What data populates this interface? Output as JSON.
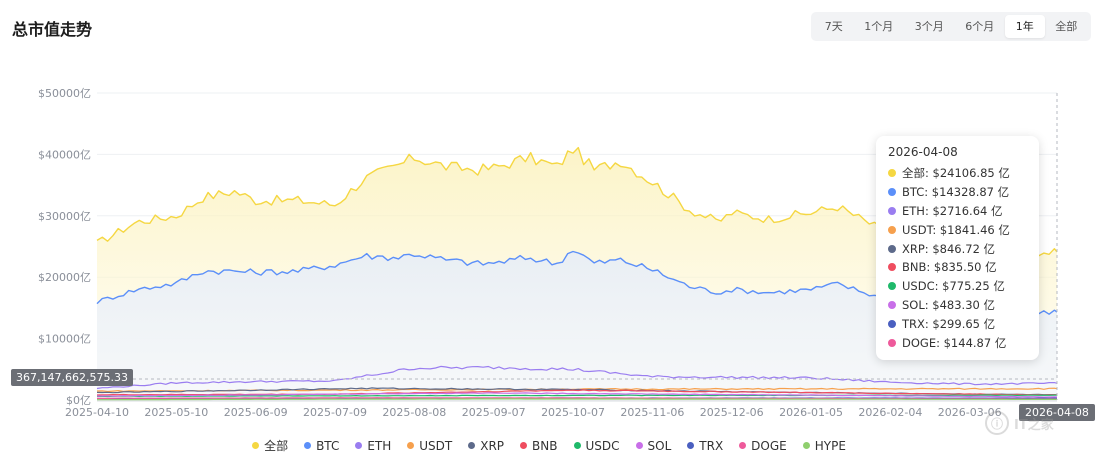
{
  "header": {
    "title": "总市值走势"
  },
  "range_tabs": {
    "items": [
      {
        "label": "7天",
        "active": false
      },
      {
        "label": "1个月",
        "active": false
      },
      {
        "label": "3个月",
        "active": false
      },
      {
        "label": "6个月",
        "active": false
      },
      {
        "label": "1年",
        "active": true
      },
      {
        "label": "全部",
        "active": false
      }
    ]
  },
  "crosshair": {
    "y_value_label": "367,147,662,575.33",
    "x_value_label": "2026-04-08"
  },
  "tooltip": {
    "date": "2026-04-08",
    "rows": [
      {
        "color": "#f5d742",
        "text": "全部: $24106.85 亿"
      },
      {
        "color": "#5b8ff9",
        "text": "BTC: $14328.87 亿"
      },
      {
        "color": "#9a7df0",
        "text": "ETH: $2716.64 亿"
      },
      {
        "color": "#f6a04d",
        "text": "USDT: $1841.46 亿"
      },
      {
        "color": "#5d6a8a",
        "text": "XRP: $846.72 亿"
      },
      {
        "color": "#ef4d5f",
        "text": "BNB: $835.50 亿"
      },
      {
        "color": "#1fb96a",
        "text": "USDC: $775.25 亿"
      },
      {
        "color": "#c86fe8",
        "text": "SOL: $483.30 亿"
      },
      {
        "color": "#4a5fc0",
        "text": "TRX: $299.65 亿"
      },
      {
        "color": "#ee5a9b",
        "text": "DOGE: $144.87 亿"
      }
    ]
  },
  "watermark": {
    "text": "IT之家"
  },
  "chart_data": {
    "type": "area",
    "x_ticks": [
      "2025-04-10",
      "2025-05-10",
      "2025-06-09",
      "2025-07-09",
      "2025-08-08",
      "2025-09-07",
      "2025-10-07",
      "2025-11-06",
      "2025-12-06",
      "2026-01-05",
      "2026-02-04",
      "2026-03-06"
    ],
    "y_ticks": [
      "$0亿",
      "$10000亿",
      "$20000亿",
      "$30000亿",
      "$40000亿",
      "$50000亿"
    ],
    "ylim": [
      0,
      50000
    ],
    "x_range": [
      "2025-04-10",
      "2026-04-08"
    ],
    "legend_placement": "bottom",
    "series": [
      {
        "name": "全部",
        "color": "#f5d742",
        "fill": true,
        "x": [
          "2025-04-10",
          "2025-04-25",
          "2025-05-10",
          "2025-05-20",
          "2025-06-01",
          "2025-06-09",
          "2025-06-25",
          "2025-07-09",
          "2025-07-20",
          "2025-08-01",
          "2025-08-08",
          "2025-08-20",
          "2025-09-01",
          "2025-09-07",
          "2025-09-20",
          "2025-10-01",
          "2025-10-07",
          "2025-10-15",
          "2025-10-25",
          "2025-11-06",
          "2025-11-20",
          "2025-12-01",
          "2025-12-06",
          "2025-12-20",
          "2026-01-05",
          "2026-01-15",
          "2026-02-04",
          "2026-02-15",
          "2026-03-06",
          "2026-03-20",
          "2026-04-08"
        ],
        "values": [
          25500,
          29000,
          30000,
          33000,
          34000,
          32500,
          32500,
          31800,
          36000,
          38000,
          39500,
          38000,
          37500,
          37800,
          39500,
          38000,
          41000,
          37500,
          39000,
          35500,
          31000,
          29000,
          30500,
          29500,
          30500,
          31500,
          27000,
          25500,
          24000,
          23500,
          24107
        ]
      },
      {
        "name": "BTC",
        "color": "#5b8ff9",
        "fill": true,
        "x": [
          "2025-04-10",
          "2025-04-25",
          "2025-05-10",
          "2025-05-20",
          "2025-06-01",
          "2025-06-09",
          "2025-06-25",
          "2025-07-09",
          "2025-07-20",
          "2025-08-01",
          "2025-08-08",
          "2025-08-20",
          "2025-09-01",
          "2025-09-07",
          "2025-09-20",
          "2025-10-01",
          "2025-10-07",
          "2025-10-15",
          "2025-10-25",
          "2025-11-06",
          "2025-11-20",
          "2025-12-01",
          "2025-12-06",
          "2025-12-20",
          "2026-01-05",
          "2026-01-15",
          "2026-02-04",
          "2026-02-15",
          "2026-03-06",
          "2026-03-20",
          "2026-04-08"
        ],
        "values": [
          16000,
          18000,
          19000,
          21000,
          21000,
          20800,
          21000,
          22000,
          23500,
          23200,
          23800,
          22800,
          22200,
          22300,
          23200,
          22200,
          24600,
          22300,
          22800,
          21200,
          18500,
          17500,
          18000,
          17500,
          18000,
          18900,
          16200,
          15000,
          14200,
          13800,
          14329
        ]
      },
      {
        "name": "ETH",
        "color": "#9a7df0",
        "fill": false,
        "x": [
          "2025-04-10",
          "2025-05-10",
          "2025-06-09",
          "2025-07-09",
          "2025-08-08",
          "2025-09-07",
          "2025-10-07",
          "2025-11-06",
          "2025-12-06",
          "2026-01-05",
          "2026-02-04",
          "2026-03-06",
          "2026-04-08"
        ],
        "values": [
          1900,
          2800,
          3000,
          3100,
          5200,
          5300,
          5000,
          3800,
          3700,
          3600,
          2900,
          2600,
          2717
        ]
      },
      {
        "name": "USDT",
        "color": "#f6a04d",
        "fill": false,
        "x": [
          "2025-04-10",
          "2025-10-07",
          "2026-04-08"
        ],
        "values": [
          1450,
          1770,
          1841
        ]
      },
      {
        "name": "XRP",
        "color": "#5d6a8a",
        "fill": false,
        "x": [
          "2025-04-10",
          "2025-07-20",
          "2025-10-07",
          "2026-01-05",
          "2026-04-08"
        ],
        "values": [
          1200,
          1900,
          1700,
          1200,
          847
        ]
      },
      {
        "name": "BNB",
        "color": "#ef4d5f",
        "fill": false,
        "x": [
          "2025-04-10",
          "2025-07-09",
          "2025-10-07",
          "2026-01-05",
          "2026-04-08"
        ],
        "values": [
          850,
          950,
          1600,
          1200,
          836
        ]
      },
      {
        "name": "USDC",
        "color": "#1fb96a",
        "fill": false,
        "x": [
          "2025-04-10",
          "2025-10-07",
          "2026-04-08"
        ],
        "values": [
          600,
          750,
          775
        ]
      },
      {
        "name": "SOL",
        "color": "#c86fe8",
        "fill": false,
        "x": [
          "2025-04-10",
          "2025-09-07",
          "2026-01-05",
          "2026-04-08"
        ],
        "values": [
          650,
          1150,
          800,
          483
        ]
      },
      {
        "name": "TRX",
        "color": "#4a5fc0",
        "fill": false,
        "x": [
          "2025-04-10",
          "2025-10-07",
          "2026-04-08"
        ],
        "values": [
          230,
          320,
          300
        ]
      },
      {
        "name": "DOGE",
        "color": "#ee5a9b",
        "fill": false,
        "x": [
          "2025-04-10",
          "2025-07-20",
          "2025-10-07",
          "2026-04-08"
        ],
        "values": [
          270,
          360,
          330,
          145
        ]
      },
      {
        "name": "HYPE",
        "color": "#8fcf6e",
        "fill": false,
        "x": [
          "2025-04-10",
          "2025-09-07",
          "2026-04-08"
        ],
        "values": [
          50,
          180,
          100
        ]
      }
    ]
  }
}
